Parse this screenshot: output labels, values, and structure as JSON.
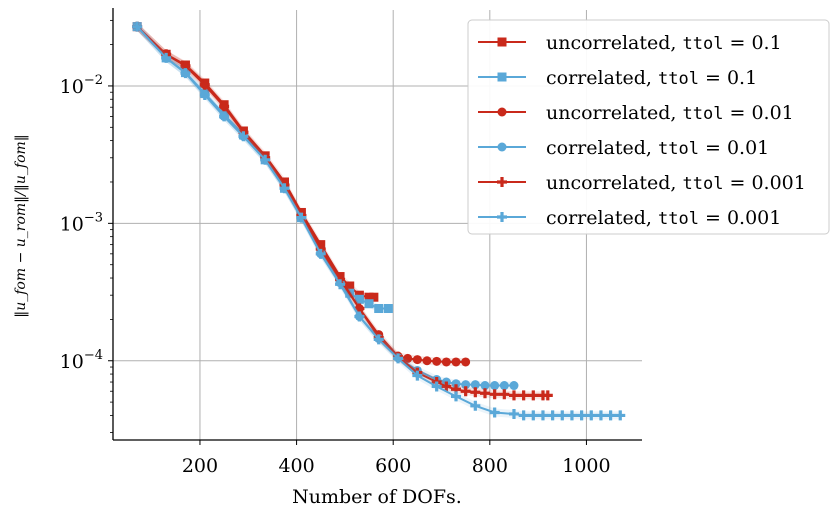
{
  "chart_data": {
    "type": "line",
    "xlabel": "Number of DOFs.",
    "ylabel": "‖u_fom − u_rom‖/‖u_fom‖",
    "xlim": [
      20,
      1115
    ],
    "ylim": [
      2.65e-05,
      0.0357
    ],
    "yscale": "log",
    "xticks": [
      200,
      400,
      600,
      800,
      1000
    ],
    "yticks": [
      {
        "value": 0.01,
        "base": "10",
        "exp": "−2"
      },
      {
        "value": 0.001,
        "base": "10",
        "exp": "−3"
      },
      {
        "value": 0.0001,
        "base": "10",
        "exp": "−4"
      }
    ],
    "grid": true,
    "legend_position": "top-right",
    "colors": {
      "uncorrelated": "#c9291b",
      "correlated": "#5aa8d8"
    },
    "series": [
      {
        "name": "uncorrelated, ttol = 0.1",
        "legend_prefix": "uncorrelated, ",
        "legend_code": "ttol",
        "legend_suffix": " = 0.1",
        "color": "#c9291b",
        "marker": "square",
        "x": [
          70,
          130,
          170,
          210,
          250,
          290,
          335,
          375,
          410,
          450,
          490,
          510,
          530,
          550,
          560
        ],
        "y": [
          0.027,
          0.017,
          0.0142,
          0.0105,
          0.0073,
          0.0047,
          0.0031,
          0.002,
          0.0012,
          0.0007,
          0.00041,
          0.00035,
          0.0003,
          0.00029,
          0.00029
        ]
      },
      {
        "name": "correlated, ttol = 0.1",
        "legend_prefix": "correlated, ",
        "legend_code": "ttol",
        "legend_suffix": " = 0.1",
        "color": "#5aa8d8",
        "marker": "square",
        "x": [
          70,
          130,
          170,
          210,
          250,
          290,
          335,
          375,
          410,
          450,
          490,
          510,
          530,
          550,
          570,
          590
        ],
        "y": [
          0.027,
          0.016,
          0.0125,
          0.0088,
          0.0062,
          0.0044,
          0.0029,
          0.0018,
          0.0011,
          0.00063,
          0.00038,
          0.00031,
          0.00028,
          0.00026,
          0.00024,
          0.00024
        ]
      },
      {
        "name": "uncorrelated, ttol = 0.01",
        "legend_prefix": "uncorrelated, ",
        "legend_code": "ttol",
        "legend_suffix": " = 0.01",
        "color": "#c9291b",
        "marker": "circle",
        "x": [
          70,
          130,
          170,
          210,
          250,
          290,
          335,
          375,
          410,
          450,
          490,
          530,
          570,
          610,
          630,
          650,
          670,
          690,
          710,
          730,
          750
        ],
        "y": [
          0.027,
          0.017,
          0.014,
          0.0102,
          0.0071,
          0.0046,
          0.003,
          0.0019,
          0.00115,
          0.00066,
          0.0004,
          0.00024,
          0.000155,
          0.000108,
          0.000104,
          0.000102,
          0.0001,
          9.9e-05,
          9.8e-05,
          9.8e-05,
          9.8e-05
        ]
      },
      {
        "name": "correlated, ttol = 0.01",
        "legend_prefix": "correlated, ",
        "legend_code": "ttol",
        "legend_suffix": " = 0.01",
        "color": "#5aa8d8",
        "marker": "circle",
        "x": [
          70,
          130,
          170,
          210,
          250,
          290,
          335,
          375,
          410,
          450,
          490,
          530,
          570,
          610,
          650,
          690,
          710,
          730,
          750,
          770,
          790,
          810,
          830,
          850
        ],
        "y": [
          0.027,
          0.016,
          0.0125,
          0.0087,
          0.006,
          0.0043,
          0.0029,
          0.0018,
          0.0011,
          0.0006,
          0.00037,
          0.00021,
          0.000145,
          0.000105,
          8.5e-05,
          7.3e-05,
          7e-05,
          6.8e-05,
          6.7e-05,
          6.7e-05,
          6.6e-05,
          6.6e-05,
          6.6e-05,
          6.6e-05
        ]
      },
      {
        "name": "uncorrelated, ttol = 0.001",
        "legend_prefix": "uncorrelated, ",
        "legend_code": "ttol",
        "legend_suffix": " = 0.001",
        "color": "#c9291b",
        "marker": "plus",
        "x": [
          70,
          130,
          170,
          210,
          250,
          290,
          335,
          375,
          410,
          450,
          490,
          530,
          570,
          610,
          650,
          690,
          710,
          730,
          750,
          770,
          790,
          810,
          830,
          850,
          870,
          890,
          910,
          920
        ],
        "y": [
          0.027,
          0.017,
          0.014,
          0.0102,
          0.0071,
          0.0046,
          0.003,
          0.0019,
          0.00114,
          0.00065,
          0.00039,
          0.00024,
          0.000148,
          0.000107,
          8.2e-05,
          7e-05,
          6.5e-05,
          6.2e-05,
          6e-05,
          5.9e-05,
          5.8e-05,
          5.7e-05,
          5.7e-05,
          5.6e-05,
          5.6e-05,
          5.6e-05,
          5.6e-05,
          5.6e-05
        ]
      },
      {
        "name": "correlated, ttol = 0.001",
        "legend_prefix": "correlated, ",
        "legend_code": "ttol",
        "legend_suffix": " = 0.001",
        "color": "#5aa8d8",
        "marker": "plus",
        "x": [
          70,
          130,
          170,
          210,
          250,
          290,
          335,
          375,
          410,
          450,
          490,
          530,
          570,
          610,
          650,
          690,
          730,
          770,
          810,
          850,
          870,
          890,
          910,
          930,
          950,
          970,
          990,
          1010,
          1030,
          1050,
          1070
        ],
        "y": [
          0.027,
          0.016,
          0.0124,
          0.0086,
          0.006,
          0.0043,
          0.0029,
          0.0018,
          0.0011,
          0.0006,
          0.00036,
          0.00021,
          0.000143,
          0.000104,
          7.8e-05,
          6.5e-05,
          5.5e-05,
          4.7e-05,
          4.2e-05,
          4.1e-05,
          4e-05,
          4e-05,
          4e-05,
          4e-05,
          4e-05,
          4e-05,
          4e-05,
          4e-05,
          4e-05,
          4e-05,
          4e-05
        ]
      }
    ]
  }
}
